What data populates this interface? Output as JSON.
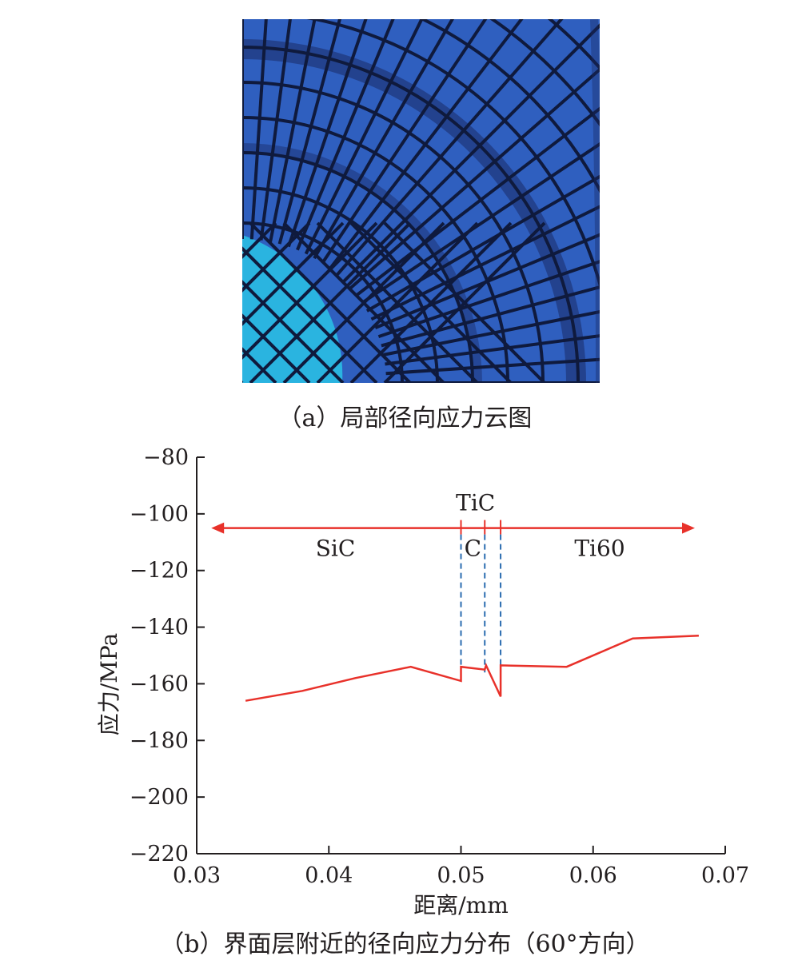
{
  "panel_a": {
    "caption": "（a）局部径向应力云图",
    "colors": {
      "matrix": "#2f5fbf",
      "fiber": "#2ab4e0",
      "band": "#1a2a66",
      "mesh": "#0f1a3d"
    }
  },
  "panel_b": {
    "caption": "（b）界面层附近的径向应力分布（60°方向）"
  },
  "chart_data": {
    "type": "line",
    "xlabel": "距离/mm",
    "ylabel": "应力/MPa",
    "xlim": [
      0.03,
      0.07
    ],
    "ylim": [
      -220,
      -80
    ],
    "xticks": [
      0.03,
      0.04,
      0.05,
      0.06,
      0.07
    ],
    "xtick_labels": [
      "0.03",
      "0.04",
      "0.05",
      "0.06",
      "0.07"
    ],
    "yticks": [
      -80,
      -100,
      -120,
      -140,
      -160,
      -180,
      -200,
      -220
    ],
    "ytick_labels": [
      "−80",
      "−100",
      "−120",
      "−140",
      "−160",
      "−180",
      "−200",
      "−220"
    ],
    "grid": false,
    "series": [
      {
        "color": "#e8312a",
        "x": [
          0.0337,
          0.038,
          0.042,
          0.0462,
          0.05,
          0.05,
          0.0518,
          0.0519,
          0.053,
          0.053,
          0.058,
          0.063,
          0.068
        ],
        "y": [
          -166,
          -162.5,
          -158,
          -154,
          -159,
          -154,
          -155,
          -153.5,
          -164.5,
          -153.5,
          -154,
          -144,
          -143
        ]
      }
    ],
    "layer_boundaries": [
      0.05,
      0.0518,
      0.053
    ],
    "range_arrow": {
      "y": -105,
      "x_start": 0.0311,
      "x_end": 0.0677,
      "color": "#e8312a"
    },
    "boundary_color": "#2b6cb0",
    "region_labels": [
      {
        "text": "SiC",
        "x": 0.0405,
        "y": -112
      },
      {
        "text": "C",
        "x": 0.0509,
        "y": -112
      },
      {
        "text": "TiC",
        "x": 0.0511,
        "y": -96
      },
      {
        "text": "Ti60",
        "x": 0.0605,
        "y": -112
      }
    ]
  }
}
